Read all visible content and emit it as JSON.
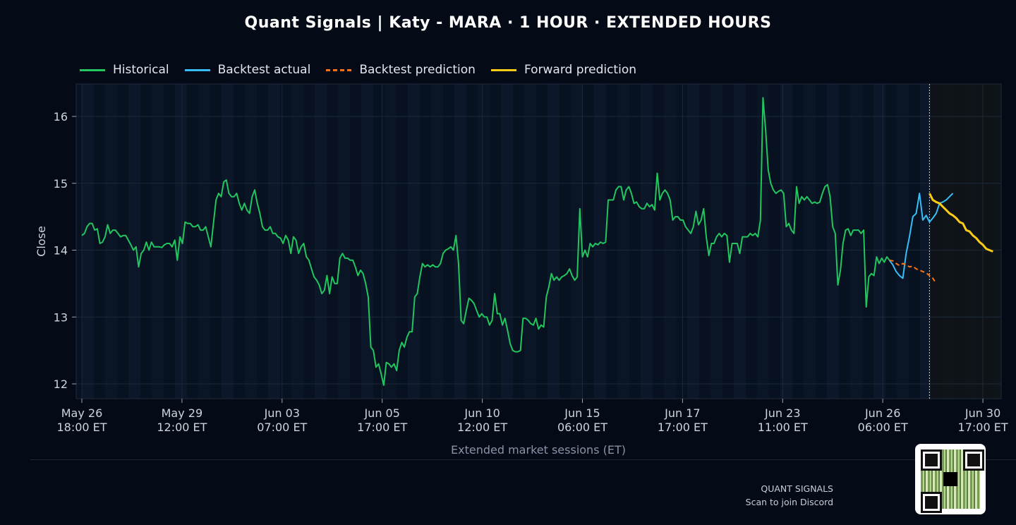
{
  "title": "Quant Signals | Katy - MARA  ·  1 HOUR  ·  EXTENDED HOURS",
  "legend": [
    {
      "label": "Historical",
      "color": "#22c55e",
      "style": "solid"
    },
    {
      "label": "Backtest actual",
      "color": "#38bdf8",
      "style": "solid"
    },
    {
      "label": "Backtest prediction",
      "color": "#f97316",
      "style": "dashed"
    },
    {
      "label": "Forward prediction",
      "color": "#facc15",
      "style": "solid"
    }
  ],
  "footer": {
    "brand": "QUANT SIGNALS",
    "cta": "Scan to join Discord",
    "qr_icon": "qr-code-icon"
  },
  "chart_data": {
    "type": "line",
    "title": "Quant Signals | Katy - MARA  ·  1 HOUR  ·  EXTENDED HOURS",
    "xlabel": "Extended market sessions (ET)",
    "ylabel": "Close",
    "ylim": [
      11.8,
      16.5
    ],
    "yticks": [
      12,
      13,
      14,
      15,
      16
    ],
    "grid": true,
    "legend_position": "top-left",
    "xticks": [
      {
        "i": 0,
        "label": [
          "May 26",
          "18:00 ET"
        ]
      },
      {
        "i": 30,
        "label": [
          "May 29",
          "12:00 ET"
        ]
      },
      {
        "i": 60,
        "label": [
          "Jun 03",
          "07:00 ET"
        ]
      },
      {
        "i": 90,
        "label": [
          "Jun 05",
          "17:00 ET"
        ]
      },
      {
        "i": 120,
        "label": [
          "Jun 10",
          "12:00 ET"
        ]
      },
      {
        "i": 150,
        "label": [
          "Jun 15",
          "06:00 ET"
        ]
      },
      {
        "i": 180,
        "label": [
          "Jun 17",
          "17:00 ET"
        ]
      },
      {
        "i": 210,
        "label": [
          "Jun 23",
          "11:00 ET"
        ]
      },
      {
        "i": 240,
        "label": [
          "Jun 26",
          "06:00 ET"
        ]
      },
      {
        "i": 270,
        "label": [
          "Jun 30",
          "17:00 ET"
        ]
      }
    ],
    "forecast_start_index": 254,
    "series": [
      {
        "name": "Historical",
        "color": "#22c55e",
        "start": 0,
        "values": [
          14.22,
          14.25,
          14.35,
          14.4,
          14.4,
          14.3,
          14.32,
          14.1,
          14.12,
          14.2,
          14.38,
          14.25,
          14.3,
          14.3,
          14.25,
          14.2,
          14.22,
          14.22,
          14.15,
          14.08,
          14.0,
          14.05,
          13.75,
          13.95,
          14.0,
          14.12,
          14.0,
          14.12,
          14.05,
          14.05,
          14.05,
          14.04,
          14.08,
          14.1,
          14.1,
          14.05,
          14.15,
          13.85,
          14.2,
          14.1,
          14.42,
          14.4,
          14.4,
          14.35,
          14.35,
          14.38,
          14.3,
          14.3,
          14.35,
          14.2,
          14.05,
          14.4,
          14.75,
          14.85,
          14.8,
          15.02,
          15.05,
          14.85,
          14.8,
          14.8,
          14.85,
          14.7,
          14.6,
          14.7,
          14.6,
          14.55,
          14.8,
          14.9,
          14.7,
          14.55,
          14.35,
          14.3,
          14.3,
          14.35,
          14.25,
          14.25,
          14.2,
          14.18,
          14.1,
          14.22,
          14.15,
          13.95,
          14.2,
          14.15,
          13.95,
          14.05,
          14.1,
          13.9,
          13.85,
          13.72,
          13.6,
          13.55,
          13.48,
          13.35,
          13.4,
          13.62,
          13.35,
          13.6,
          13.5,
          13.5,
          13.88,
          13.95,
          13.88,
          13.88,
          13.85,
          13.85,
          13.75,
          13.62,
          13.7,
          13.65,
          13.5,
          13.3,
          12.55,
          12.5,
          12.25,
          12.3,
          12.15,
          11.98,
          12.32,
          12.3,
          12.25,
          12.3,
          12.2,
          12.5,
          12.62,
          12.55,
          12.7,
          12.78,
          12.78,
          13.3,
          13.35,
          13.6,
          13.8,
          13.75,
          13.78,
          13.75,
          13.78,
          13.75,
          13.75,
          13.8,
          13.95,
          14.0,
          14.02,
          14.05,
          14.0,
          14.22,
          13.8,
          12.95,
          12.9,
          13.1,
          13.28,
          13.25,
          13.2,
          13.1,
          13.0,
          13.05,
          13.0,
          13.0,
          12.88,
          12.95,
          13.35,
          13.05,
          13.05,
          12.88,
          12.98,
          12.8,
          12.6,
          12.5,
          12.48,
          12.48,
          12.5,
          12.98,
          12.98,
          12.95,
          12.9,
          12.88,
          12.98,
          12.82,
          12.88,
          12.85,
          13.3,
          13.45,
          13.65,
          13.55,
          13.6,
          13.55,
          13.6,
          13.62,
          13.65,
          13.72,
          13.62,
          13.55,
          13.6,
          14.62,
          13.9,
          14.0,
          13.9,
          14.1,
          14.05,
          14.1,
          14.08,
          14.12,
          14.1,
          14.12,
          14.75,
          14.75,
          14.75,
          14.9,
          14.95,
          14.95,
          14.75,
          14.9,
          14.95,
          14.85,
          14.7,
          14.72,
          14.65,
          14.62,
          14.62,
          14.7,
          14.65,
          14.68,
          14.6,
          15.15,
          14.75,
          14.85,
          14.9,
          14.85,
          14.75,
          14.45,
          14.5,
          14.5,
          14.45,
          14.45,
          14.35,
          14.3,
          14.25,
          14.35,
          14.58,
          14.38,
          14.45,
          14.62,
          14.2,
          13.92,
          14.1,
          14.1,
          14.2,
          14.25,
          14.2,
          14.25,
          14.22,
          13.82,
          14.1,
          14.1,
          14.1,
          13.95,
          14.2,
          14.2,
          14.2,
          14.25,
          14.22,
          14.25,
          14.2,
          14.45,
          16.28,
          15.8,
          15.2,
          15.0,
          14.9,
          14.85,
          14.88,
          14.9,
          14.85,
          14.35,
          14.4,
          14.3,
          14.25,
          14.95,
          14.7,
          14.8,
          14.75,
          14.8,
          14.75,
          14.7,
          14.72,
          14.7,
          14.72,
          14.85,
          14.95,
          14.98,
          14.8,
          14.35,
          14.25,
          13.48,
          13.7,
          14.1,
          14.3,
          14.32,
          14.22,
          14.3,
          14.3,
          14.3,
          14.25,
          14.3,
          13.15,
          13.6,
          13.65,
          13.62,
          13.9,
          13.8,
          13.88,
          13.82,
          13.9,
          13.85
        ]
      },
      {
        "name": "Backtest actual",
        "color": "#38bdf8",
        "start": 242,
        "values": [
          13.85,
          13.78,
          13.68,
          13.62,
          13.58,
          13.95,
          14.2,
          14.5,
          14.55,
          14.85,
          14.45,
          14.52,
          14.42,
          14.48,
          14.55,
          14.7,
          14.72,
          14.75,
          14.8,
          14.85
        ]
      },
      {
        "name": "Backtest prediction",
        "color": "#f97316",
        "start": 242,
        "values": [
          13.85,
          13.84,
          13.8,
          13.77,
          13.8,
          13.78,
          13.75,
          13.76,
          13.72,
          13.7,
          13.68,
          13.66,
          13.62,
          13.58,
          13.5
        ]
      },
      {
        "name": "Forward prediction",
        "color": "#facc15",
        "start": 254,
        "values": [
          14.85,
          14.75,
          14.72,
          14.7,
          14.65,
          14.6,
          14.55,
          14.52,
          14.48,
          14.42,
          14.4,
          14.3,
          14.28,
          14.22,
          14.18,
          14.12,
          14.08,
          14.02,
          14.0,
          13.98
        ]
      }
    ]
  }
}
